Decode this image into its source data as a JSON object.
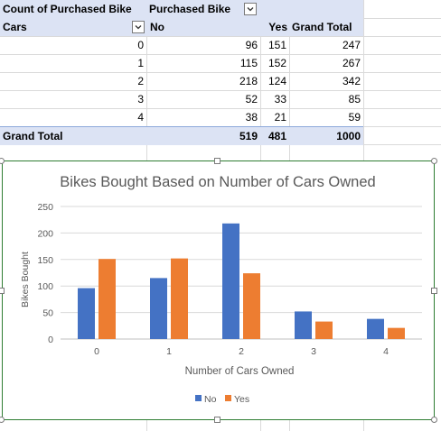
{
  "pivot": {
    "header1": {
      "count_label": "Count of Purchased Bike",
      "col_field": "Purchased Bike"
    },
    "header2": {
      "row_field": "Cars",
      "col_no": "No",
      "col_yes": "Yes",
      "col_total": "Grand Total"
    },
    "rows": [
      {
        "cars": "0",
        "no": "96",
        "yes": "151",
        "total": "247"
      },
      {
        "cars": "1",
        "no": "115",
        "yes": "152",
        "total": "267"
      },
      {
        "cars": "2",
        "no": "218",
        "yes": "124",
        "total": "342"
      },
      {
        "cars": "3",
        "no": "52",
        "yes": "33",
        "total": "85"
      },
      {
        "cars": "4",
        "no": "38",
        "yes": "21",
        "total": "59"
      }
    ],
    "grand_total": {
      "label": "Grand Total",
      "no": "519",
      "yes": "481",
      "total": "1000"
    }
  },
  "chart_data": {
    "type": "bar",
    "title": "Bikes Bought Based on Number of Cars Owned",
    "xlabel": "Number of Cars Owned",
    "ylabel": "Bikes Bought",
    "categories": [
      "0",
      "1",
      "2",
      "3",
      "4"
    ],
    "ylim": [
      0,
      250
    ],
    "yticks": [
      0,
      50,
      100,
      150,
      200,
      250
    ],
    "grid": true,
    "legend": "bottom",
    "series": [
      {
        "name": "No",
        "color": "#4472c4",
        "values": [
          96,
          115,
          218,
          52,
          38
        ]
      },
      {
        "name": "Yes",
        "color": "#ed7d31",
        "values": [
          151,
          152,
          124,
          33,
          21
        ]
      }
    ]
  },
  "colors": {
    "header_fill": "#dce3f4",
    "chart_border": "#2e7d32",
    "gridline": "#d9d9d9"
  }
}
